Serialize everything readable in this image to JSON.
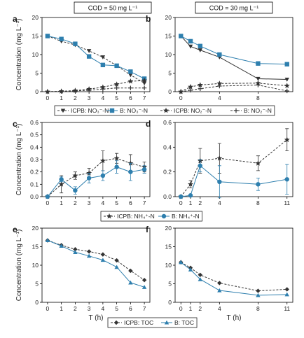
{
  "headers": [
    {
      "text": "COD = 50 mg L⁻¹"
    },
    {
      "text": "COD = 30 mg L⁻¹"
    }
  ],
  "colors": {
    "icpb": "#333333",
    "b": "#2e7fae"
  },
  "legends": [
    [
      "ICPB: NO₃⁻-N",
      "B: NO₃⁻-N",
      "ICPB: NO₂⁻-N",
      "B: NO₂⁻-N"
    ],
    [
      "ICPB: NH₄⁺-N",
      "B: NH₄⁺-N"
    ],
    [
      "ICPB: TOC",
      "B: TOC"
    ]
  ],
  "chart_data": [
    {
      "panel": "a",
      "type": "line",
      "ylabel": "Concentration (mg L⁻¹)",
      "xlabel": "",
      "xlim": [
        -0.4,
        7.4
      ],
      "ylim": [
        0,
        20
      ],
      "xticks": [
        0,
        1,
        2,
        3,
        4,
        5,
        6,
        7
      ],
      "yticks": [
        0,
        5,
        10,
        15,
        20
      ],
      "series": [
        {
          "name": "ICPB: NO₃⁻-N",
          "marker": "triangle-down",
          "color": "#333333",
          "dash": true,
          "x": [
            0,
            1,
            2,
            3,
            4,
            5,
            6,
            7
          ],
          "y": [
            15.0,
            13.6,
            12.6,
            11.0,
            9.3,
            7.0,
            4.5,
            2.3
          ]
        },
        {
          "name": "B: NO₃⁻-N",
          "marker": "square",
          "color": "#2e7fae",
          "dash": false,
          "x": [
            0,
            1,
            2,
            3,
            4,
            5,
            6,
            7
          ],
          "y": [
            15.0,
            14.2,
            12.9,
            9.5,
            7.2,
            7.0,
            5.4,
            3.5
          ]
        },
        {
          "name": "ICPB: NO₂⁻-N",
          "marker": "star",
          "color": "#333333",
          "dash": true,
          "x": [
            0,
            1,
            2,
            3,
            4,
            5,
            6,
            7
          ],
          "y": [
            0.0,
            0.1,
            0.3,
            0.7,
            1.2,
            2.0,
            2.8,
            3.0
          ]
        },
        {
          "name": "B: NO₂⁻-N",
          "marker": "plus",
          "color": "#333333",
          "dash": true,
          "x": [
            0,
            1,
            2,
            3,
            4,
            5,
            6,
            7
          ],
          "y": [
            0.0,
            0.1,
            0.2,
            0.4,
            0.7,
            1.0,
            1.0,
            1.0
          ]
        }
      ]
    },
    {
      "panel": "b",
      "type": "line",
      "ylabel": "",
      "xlabel": "",
      "xlim": [
        -0.6,
        11.6
      ],
      "ylim": [
        0,
        20
      ],
      "xticks": [
        0,
        4,
        8
      ],
      "yticks": [
        0,
        5,
        10,
        15,
        20
      ],
      "series": [
        {
          "name": "ICPB: NO₃⁻-N",
          "marker": "triangle-down",
          "color": "#333333",
          "dash": false,
          "x": [
            0,
            1,
            2,
            4,
            8,
            11
          ],
          "y": [
            15.0,
            12.2,
            11.2,
            9.3,
            3.5,
            3.3
          ]
        },
        {
          "name": "B: NO₃⁻-N",
          "marker": "square",
          "color": "#2e7fae",
          "dash": false,
          "x": [
            0,
            1,
            2,
            4,
            8,
            11
          ],
          "y": [
            15.0,
            13.6,
            12.3,
            10.0,
            7.6,
            7.4
          ]
        },
        {
          "name": "ICPB: NO₂⁻-N",
          "marker": "star",
          "color": "#333333",
          "dash": true,
          "x": [
            0,
            1,
            2,
            4,
            8,
            11
          ],
          "y": [
            0.0,
            1.3,
            1.8,
            2.2,
            2.3,
            1.6
          ]
        },
        {
          "name": "B: NO₂⁻-N",
          "marker": "plus",
          "color": "#333333",
          "dash": true,
          "x": [
            0,
            1,
            2,
            4,
            8,
            11
          ],
          "y": [
            0.0,
            0.4,
            0.8,
            1.5,
            1.8,
            0.2
          ]
        }
      ]
    },
    {
      "panel": "c",
      "type": "line",
      "ylabel": "Concentration (mg L⁻¹)",
      "xlabel": "",
      "xlim": [
        -0.4,
        7.4
      ],
      "ylim": [
        0,
        0.6
      ],
      "xticks": [
        0,
        1,
        2,
        3,
        4,
        5,
        6,
        7
      ],
      "yticks": [
        0.0,
        0.1,
        0.2,
        0.3,
        0.4,
        0.5,
        0.6
      ],
      "series": [
        {
          "name": "ICPB: NH₄⁺-N",
          "marker": "star",
          "color": "#333333",
          "dash": true,
          "x": [
            0,
            1,
            2,
            3,
            4,
            5,
            6,
            7
          ],
          "y": [
            0.0,
            0.1,
            0.17,
            0.19,
            0.29,
            0.31,
            0.27,
            0.24
          ],
          "err": [
            0,
            0.07,
            0.03,
            0.04,
            0.08,
            0.04,
            0.07,
            0.04
          ]
        },
        {
          "name": "B: NH₄⁺-N",
          "marker": "circle",
          "color": "#2e7fae",
          "dash": false,
          "x": [
            0,
            1,
            2,
            3,
            4,
            5,
            6,
            7
          ],
          "y": [
            0.0,
            0.14,
            0.05,
            0.15,
            0.17,
            0.24,
            0.2,
            0.22
          ],
          "err": [
            0,
            0.02,
            0.03,
            0.04,
            0.04,
            0.05,
            0.07,
            0.03
          ]
        }
      ]
    },
    {
      "panel": "d",
      "type": "line",
      "ylabel": "",
      "xlabel": "",
      "xlim": [
        -0.6,
        11.6
      ],
      "ylim": [
        0,
        0.6
      ],
      "xticks": [
        0,
        1,
        2,
        4,
        8,
        11
      ],
      "yticks": [
        0.0,
        0.2,
        0.4,
        0.6
      ],
      "series": [
        {
          "name": "ICPB: NH₄⁺-N",
          "marker": "star",
          "color": "#333333",
          "dash": true,
          "x": [
            0,
            1,
            2,
            4,
            8,
            11
          ],
          "y": [
            0.0,
            0.1,
            0.29,
            0.31,
            0.27,
            0.46
          ],
          "err": [
            0,
            0.03,
            0.1,
            0.12,
            0.06,
            0.09
          ]
        },
        {
          "name": "B: NH₄⁺-N",
          "marker": "circle",
          "color": "#2e7fae",
          "dash": false,
          "x": [
            0,
            1,
            2,
            4,
            8,
            11
          ],
          "y": [
            0.0,
            0.01,
            0.25,
            0.12,
            0.1,
            0.14
          ],
          "err": [
            0,
            0.01,
            0.05,
            0.13,
            0.05,
            0.12
          ]
        }
      ]
    },
    {
      "panel": "e",
      "type": "line",
      "ylabel": "Concentration (mg L⁻¹)",
      "xlabel": "T (h)",
      "xlim": [
        -0.4,
        7.4
      ],
      "ylim": [
        0,
        20
      ],
      "xticks": [
        0,
        1,
        2,
        3,
        4,
        5,
        6,
        7
      ],
      "yticks": [
        0,
        5,
        10,
        15,
        20
      ],
      "series": [
        {
          "name": "ICPB: TOC",
          "marker": "diamond",
          "color": "#333333",
          "dash": true,
          "x": [
            0,
            1,
            2,
            3,
            4,
            5,
            6,
            7
          ],
          "y": [
            16.7,
            15.4,
            14.3,
            13.7,
            12.9,
            11.3,
            8.5,
            6.0
          ]
        },
        {
          "name": "B: TOC",
          "marker": "triangle-up",
          "color": "#2e7fae",
          "dash": false,
          "x": [
            0,
            1,
            2,
            3,
            4,
            5,
            6,
            7
          ],
          "y": [
            16.7,
            15.2,
            13.5,
            12.5,
            11.4,
            9.5,
            5.3,
            4.1
          ]
        }
      ]
    },
    {
      "panel": "f",
      "type": "line",
      "ylabel": "",
      "xlabel": "T (h)",
      "xlim": [
        -0.6,
        11.6
      ],
      "ylim": [
        0,
        20
      ],
      "xticks": [
        0,
        1,
        2,
        4,
        8,
        11
      ],
      "yticks": [
        0,
        5,
        10,
        15,
        20
      ],
      "series": [
        {
          "name": "ICPB: TOC",
          "marker": "diamond",
          "color": "#333333",
          "dash": true,
          "x": [
            0,
            1,
            2,
            4,
            8,
            11
          ],
          "y": [
            10.8,
            9.3,
            7.4,
            5.2,
            3.1,
            3.5
          ]
        },
        {
          "name": "B: TOC",
          "marker": "triangle-up",
          "color": "#2e7fae",
          "dash": false,
          "x": [
            0,
            1,
            2,
            4,
            8,
            11
          ],
          "y": [
            10.8,
            8.8,
            6.2,
            3.2,
            1.9,
            2.1
          ]
        }
      ]
    }
  ]
}
